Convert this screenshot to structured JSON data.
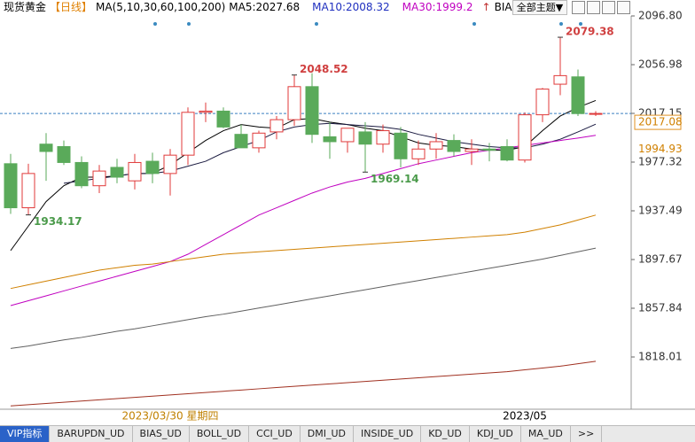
{
  "header": {
    "instrument": "现货黄金",
    "period": "【日线】",
    "ma_label": "MA(5,10,30,60,100,200)",
    "ma_values": [
      {
        "label": "MA5:2027.68",
        "color": "#000000"
      },
      {
        "label": "MA10:2008.32",
        "color": "#1f2fbf"
      },
      {
        "label": "MA30:1999.2",
        "color": "#c000c0"
      }
    ],
    "bias": "BIAS",
    "theme_button": "全部主题▼"
  },
  "chart_data": {
    "type": "candlestick",
    "up_color": "#e03a3a",
    "down_color": "#5aaa5a",
    "ylim": [
      1775.3,
      2109.83
    ],
    "yticks": [
      {
        "value": 2096.8,
        "label": "2096.80"
      },
      2056.98,
      2017.15,
      1977.32,
      1937.49,
      1897.67,
      1857.84,
      1818.01
    ],
    "categories": [
      null,
      null,
      null,
      null,
      null,
      null,
      null,
      null,
      null,
      "2023/03/30 星期四",
      null,
      null,
      null,
      null,
      null,
      null,
      null,
      null,
      null,
      null,
      null,
      null,
      null,
      null,
      null,
      null,
      null,
      null,
      null,
      "2023/05",
      null,
      null,
      null,
      null
    ],
    "candles": [
      {
        "open": 1976,
        "high": 1984,
        "low": 1935,
        "close": 1940
      },
      {
        "open": 1940,
        "high": 1976,
        "low": 1934.17,
        "close": 1968
      },
      {
        "open": 1992,
        "high": 2001,
        "low": 1962,
        "close": 1986
      },
      {
        "open": 1990,
        "high": 1995,
        "low": 1975,
        "close": 1977
      },
      {
        "open": 1977,
        "high": 1982,
        "low": 1956,
        "close": 1958
      },
      {
        "open": 1958,
        "high": 1975,
        "low": 1952,
        "close": 1970
      },
      {
        "open": 1973,
        "high": 1980,
        "low": 1960,
        "close": 1965
      },
      {
        "open": 1962,
        "high": 1984,
        "low": 1955,
        "close": 1977
      },
      {
        "open": 1978,
        "high": 1985,
        "low": 1960,
        "close": 1968
      },
      {
        "open": 1968,
        "high": 1988,
        "low": 1950,
        "close": 1983
      },
      {
        "open": 1983,
        "high": 2022,
        "low": 1975,
        "close": 2018
      },
      {
        "open": 2018,
        "high": 2026,
        "low": 2010,
        "close": 2019
      },
      {
        "open": 2019,
        "high": 2022,
        "low": 2005,
        "close": 2006
      },
      {
        "open": 2000,
        "high": 2008,
        "low": 1990,
        "close": 1989
      },
      {
        "open": 1989,
        "high": 2003,
        "low": 1985,
        "close": 2001
      },
      {
        "open": 2002,
        "high": 2015,
        "low": 1996,
        "close": 2012
      },
      {
        "open": 2012,
        "high": 2048.52,
        "low": 2007,
        "close": 2039
      },
      {
        "open": 2039,
        "high": 2050,
        "low": 1993,
        "close": 2000
      },
      {
        "open": 1998,
        "high": 2010,
        "low": 1980,
        "close": 1994
      },
      {
        "open": 1994,
        "high": 2005,
        "low": 1985,
        "close": 2005
      },
      {
        "open": 2002,
        "high": 2010,
        "low": 1969.14,
        "close": 1992
      },
      {
        "open": 1992,
        "high": 2008,
        "low": 1985,
        "close": 2003
      },
      {
        "open": 2001,
        "high": 2006,
        "low": 1973,
        "close": 1980
      },
      {
        "open": 1980,
        "high": 1995,
        "low": 1975,
        "close": 1988
      },
      {
        "open": 1988,
        "high": 2001,
        "low": 1980,
        "close": 1994
      },
      {
        "open": 1995,
        "high": 2000,
        "low": 1982,
        "close": 1986
      },
      {
        "open": 1986,
        "high": 1996,
        "low": 1975,
        "close": 1988
      },
      {
        "open": 1988,
        "high": 1993,
        "low": 1978,
        "close": 1987
      },
      {
        "open": 1990,
        "high": 1996,
        "low": 1978,
        "close": 1979
      },
      {
        "open": 1979,
        "high": 2018,
        "low": 1977,
        "close": 2016
      },
      {
        "open": 2016,
        "high": 2038,
        "low": 2010,
        "close": 2037
      },
      {
        "open": 2041,
        "high": 2079.38,
        "low": 2032,
        "close": 2048
      },
      {
        "open": 2047,
        "high": 2053,
        "low": 2015,
        "close": 2017
      },
      {
        "open": 2017,
        "high": 2019,
        "low": 2015,
        "close": 2017.08
      }
    ],
    "lines": [
      {
        "color": "#000000",
        "values": [
          1905,
          1925,
          1945,
          1958,
          1965,
          1965,
          1966,
          1968,
          1968,
          1975,
          1985,
          1995,
          2003,
          2008,
          2006,
          2005,
          2012,
          2013,
          2010,
          2008,
          2005,
          2003,
          1998,
          1993,
          1991,
          1990,
          1988,
          1987,
          1987,
          1990,
          2003,
          2015,
          2022,
          2027.68
        ]
      },
      {
        "color": "#1a1a40",
        "values": [
          null,
          null,
          null,
          1960,
          1962,
          1964,
          1966,
          1968,
          1968,
          1970,
          1974,
          1978,
          1985,
          1990,
          1995,
          2002,
          2006,
          2008,
          2009,
          2008,
          2007,
          2006,
          2004,
          2000,
          1997,
          1994,
          1992,
          1990,
          1989,
          1989,
          1992,
          1996,
          2002,
          2008.32
        ]
      },
      {
        "color": "#c000c0",
        "values": [
          1860,
          1864,
          1868,
          1872,
          1876,
          1880,
          1884,
          1888,
          1892,
          1896,
          1902,
          1910,
          1918,
          1926,
          1934,
          1940,
          1946,
          1952,
          1957,
          1961,
          1964,
          1968,
          1972,
          1976,
          1979,
          1982,
          1985,
          1987,
          1989,
          1991,
          1993,
          1995,
          1997,
          1999.2
        ]
      },
      {
        "color": "#d08000",
        "values": [
          1874,
          1877,
          1880,
          1883,
          1886,
          1889,
          1891,
          1893,
          1894,
          1896,
          1898,
          1900,
          1902,
          1903,
          1904,
          1905,
          1906,
          1907,
          1908,
          1909,
          1910,
          1911,
          1912,
          1913,
          1914,
          1915,
          1916,
          1917,
          1918,
          1920,
          1923,
          1926,
          1930,
          1934
        ]
      },
      {
        "color": "#606060",
        "values": [
          1825,
          1827,
          1829.5,
          1832,
          1834,
          1836.5,
          1839,
          1841,
          1843.5,
          1846,
          1848.5,
          1851,
          1853,
          1855.5,
          1858,
          1860.5,
          1863,
          1865.5,
          1868,
          1870.5,
          1873,
          1875.5,
          1878,
          1880.5,
          1883,
          1885.5,
          1888,
          1890.5,
          1893,
          1895.5,
          1898,
          1901,
          1904,
          1907
        ]
      },
      {
        "color": "#a03020",
        "values": [
          1778,
          1779,
          1780,
          1781,
          1782,
          1783,
          1784,
          1785,
          1786,
          1787,
          1788,
          1789,
          1790,
          1791,
          1792,
          1793,
          1794,
          1795,
          1796,
          1797,
          1798,
          1799,
          1800,
          1801,
          1802,
          1803,
          1804,
          1805,
          1806,
          1807.5,
          1809,
          1810.5,
          1812.5,
          1814.5
        ]
      }
    ],
    "annotations": [
      {
        "value": 2079.38,
        "color": "#d04040"
      },
      {
        "value": 2048.52,
        "color": "#d04040"
      },
      {
        "value": 1969.14,
        "color": "#4a9a4a"
      },
      {
        "value": 1934.17,
        "color": "#4a9a4a"
      }
    ],
    "current_price": {
      "value": 2017.08,
      "color": "#3a7fc0"
    },
    "price_tags": [
      2017.08,
      1994.93
    ]
  },
  "tabs": [
    "VIP指标",
    "BARUPDN_UD",
    "BIAS_UD",
    "BOLL_UD",
    "CCI_UD",
    "DMI_UD",
    "INSIDE_UD",
    "KD_UD",
    "KDJ_UD",
    "MA_UD",
    ">>"
  ]
}
